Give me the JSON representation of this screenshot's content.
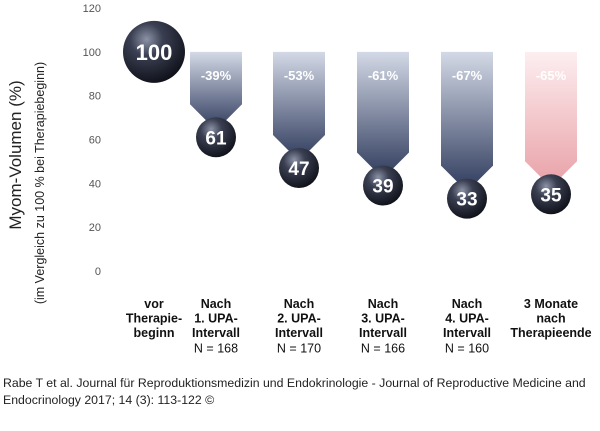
{
  "chart_data": {
    "type": "bar",
    "ylabel": "Myom-Volumen (%)",
    "ylabel_sub": "(im Vergleich zu 100 % bei Therapiebeginn)",
    "ylim": [
      0,
      120
    ],
    "yticks": [
      0,
      20,
      40,
      60,
      80,
      100,
      120
    ],
    "grid": false,
    "baseline": 100,
    "categories": [
      {
        "lines": [
          "vor",
          "Therapie-",
          "beginn"
        ],
        "n": ""
      },
      {
        "lines": [
          "Nach",
          "1. UPA-",
          "Intervall"
        ],
        "n": "N = 168"
      },
      {
        "lines": [
          "Nach",
          "2. UPA-",
          "Intervall"
        ],
        "n": "N = 170"
      },
      {
        "lines": [
          "Nach",
          "3. UPA-",
          "Intervall"
        ],
        "n": "N = 166"
      },
      {
        "lines": [
          "Nach",
          "4. UPA-",
          "Intervall"
        ],
        "n": "N = 160"
      },
      {
        "lines": [
          "3 Monate",
          "nach",
          "Therapieende"
        ],
        "n": ""
      }
    ],
    "values": [
      100,
      61,
      47,
      39,
      33,
      35
    ],
    "value_labels": [
      "100",
      "61",
      "47",
      "39",
      "33",
      "35"
    ],
    "change_labels": [
      "",
      "-39%",
      "-53%",
      "-61%",
      "-67%",
      "-65%"
    ],
    "colors": {
      "arrow_dark": "#2e3a5c",
      "arrow_light": "#ccd3e2",
      "arrow_pink_dark": "#e8a0a6",
      "arrow_pink_light": "#fbe3e5",
      "ball": "#1a1c26"
    }
  },
  "citation": "Rabe T et al. Journal für Reproduktionsmedizin und Endokrinologie - Journal of Reproductive Medicine and Endocrinology 2017; 14 (3): 113-122 ©"
}
